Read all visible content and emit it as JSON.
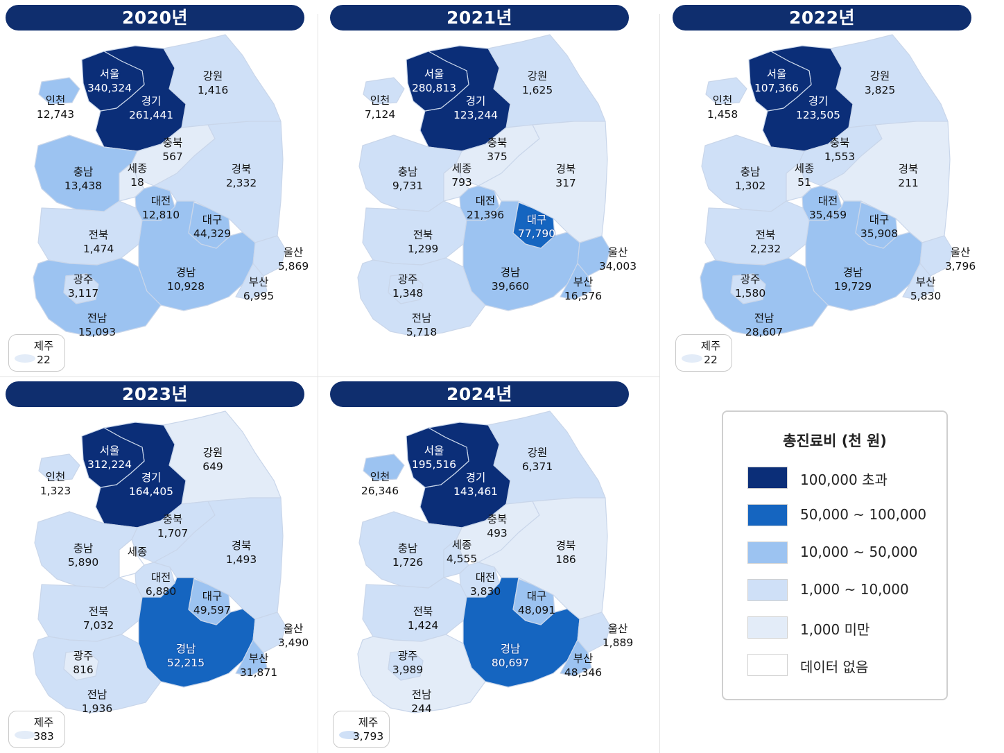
{
  "colors": {
    "header_bg": "#0f2e6e",
    "over_100000": "#0b2e78",
    "50000_100000": "#1565c0",
    "10000_50000": "#9cc3f1",
    "1000_10000": "#cfe0f7",
    "under_1000": "#e3ecf8",
    "no_data": "#ffffff"
  },
  "legend": {
    "title": "총진료비 (천 원)",
    "items": [
      {
        "label": "100,000 초과",
        "color": "#0b2e78"
      },
      {
        "label": "50,000 ~ 100,000",
        "color": "#1565c0"
      },
      {
        "label": "10,000 ~ 50,000",
        "color": "#9cc3f1"
      },
      {
        "label": "1,000 ~ 10,000",
        "color": "#cfe0f7"
      },
      {
        "label": "1,000 미만",
        "color": "#e3ecf8"
      },
      {
        "label": "데이터 없음",
        "color": "#ffffff"
      }
    ]
  },
  "region_names": [
    "서울",
    "인천",
    "경기",
    "강원",
    "충북",
    "충남",
    "세종",
    "대전",
    "경북",
    "대구",
    "전북",
    "울산",
    "광주",
    "경남",
    "부산",
    "전남",
    "제주"
  ],
  "panels": [
    {
      "year": "2020년",
      "values": {
        "서울": "340,324",
        "인천": "12,743",
        "경기": "261,441",
        "강원": "1,416",
        "충북": "567",
        "충남": "13,438",
        "세종": "18",
        "대전": "12,810",
        "경북": "2,332",
        "대구": "44,329",
        "전북": "1,474",
        "울산": "5,869",
        "광주": "3,117",
        "경남": "10,928",
        "부산": "6,995",
        "전남": "15,093",
        "제주": "22"
      }
    },
    {
      "year": "2021년",
      "values": {
        "서울": "280,813",
        "인천": "7,124",
        "경기": "123,244",
        "강원": "1,625",
        "충북": "375",
        "충남": "9,731",
        "세종": "793",
        "대전": "21,396",
        "경북": "317",
        "대구": "77,790",
        "전북": "1,299",
        "울산": "34,003",
        "광주": "1,348",
        "경남": "39,660",
        "부산": "16,576",
        "전남": "5,718",
        "제주": ""
      }
    },
    {
      "year": "2022년",
      "values": {
        "서울": "107,366",
        "인천": "1,458",
        "경기": "123,505",
        "강원": "3,825",
        "충북": "1,553",
        "충남": "1,302",
        "세종": "51",
        "대전": "35,459",
        "경북": "211",
        "대구": "35,908",
        "전북": "2,232",
        "울산": "3,796",
        "광주": "1,580",
        "경남": "19,729",
        "부산": "5,830",
        "전남": "28,607",
        "제주": "22"
      }
    },
    {
      "year": "2023년",
      "values": {
        "서울": "312,224",
        "인천": "1,323",
        "경기": "164,405",
        "강원": "649",
        "충북": "1,707",
        "충남": "5,890",
        "세종": "",
        "대전": "6,880",
        "경북": "1,493",
        "대구": "49,597",
        "전북": "7,032",
        "울산": "3,490",
        "광주": "816",
        "경남": "52,215",
        "부산": "31,871",
        "전남": "1,936",
        "제주": "383"
      }
    },
    {
      "year": "2024년",
      "values": {
        "서울": "195,516",
        "인천": "26,346",
        "경기": "143,461",
        "강원": "6,371",
        "충북": "493",
        "충남": "1,726",
        "세종": "4,555",
        "대전": "3,830",
        "경북": "186",
        "대구": "48,091",
        "전북": "1,424",
        "울산": "1,889",
        "광주": "3,989",
        "경남": "80,697",
        "부산": "48,346",
        "전남": "244",
        "제주": "3,793"
      }
    }
  ]
}
